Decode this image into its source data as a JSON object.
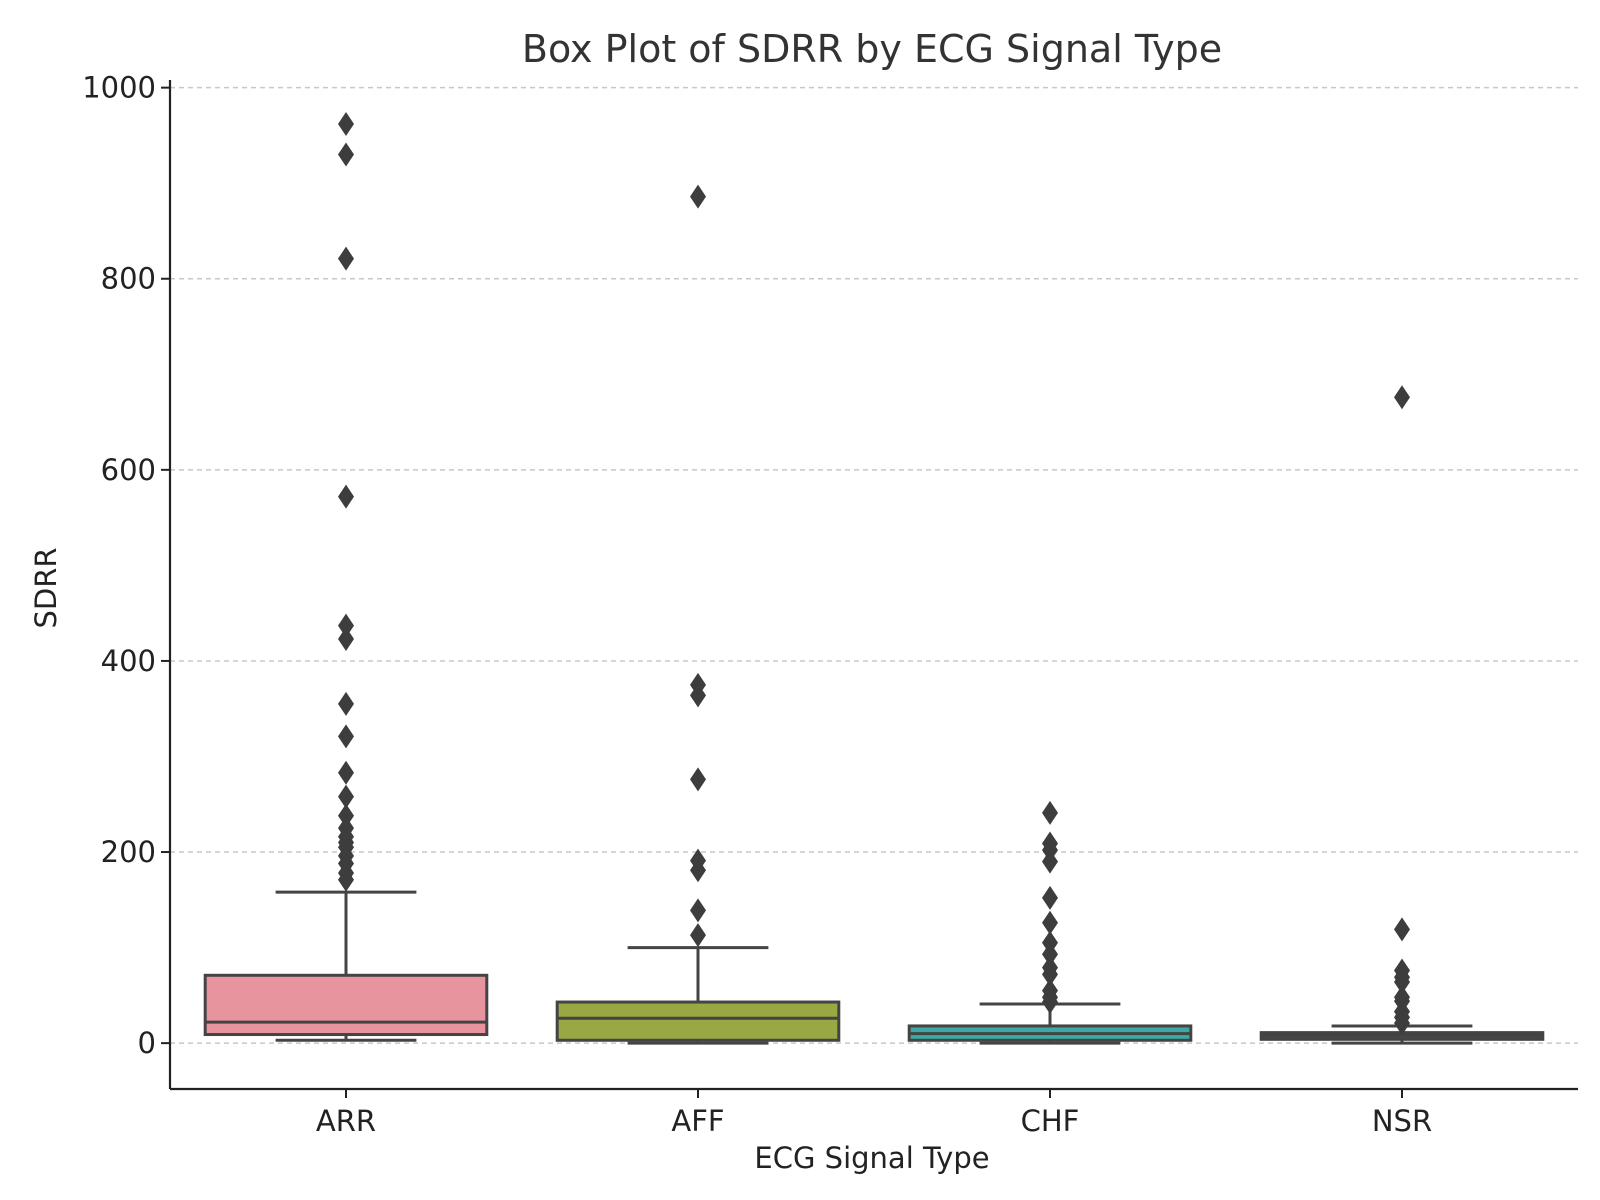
{
  "chart_data": {
    "type": "box",
    "title": "Box Plot of SDRR by ECG Signal Type",
    "xlabel": "ECG Signal Type",
    "ylabel": "SDRR",
    "ylim": [
      -48,
      1008
    ],
    "yticks": [
      0,
      200,
      400,
      600,
      800,
      1000
    ],
    "grid": "y-dashed",
    "categories": [
      "ARR",
      "AFF",
      "CHF",
      "NSR"
    ],
    "boxes": [
      {
        "category": "ARR",
        "color": "#e8949f",
        "whisker_low": 3,
        "q1": 9,
        "median": 22,
        "q3": 71,
        "whisker_high": 158,
        "outliers": [
          171,
          178,
          188,
          196,
          205,
          210,
          216,
          225,
          238,
          258,
          283,
          321,
          355,
          423,
          437,
          572,
          821,
          930,
          962
        ]
      },
      {
        "category": "AFF",
        "color": "#9aa844",
        "whisker_low": 0,
        "q1": 3,
        "median": 26,
        "q3": 43,
        "whisker_high": 100,
        "outliers": [
          113,
          139,
          181,
          191,
          276,
          364,
          375,
          886
        ]
      },
      {
        "category": "CHF",
        "color": "#3aaba3",
        "whisker_low": 0,
        "q1": 3,
        "median": 10,
        "q3": 18,
        "whisker_high": 41,
        "outliers": [
          43,
          48,
          55,
          72,
          79,
          93,
          105,
          126,
          152,
          190,
          202,
          209,
          241
        ]
      },
      {
        "category": "NSR",
        "color": "#4a4a4a",
        "whisker_low": 0,
        "q1": 4,
        "median": 8,
        "q3": 11,
        "whisker_high": 18,
        "outliers": [
          21,
          27,
          33,
          44,
          48,
          64,
          69,
          76,
          119,
          676
        ]
      }
    ]
  }
}
